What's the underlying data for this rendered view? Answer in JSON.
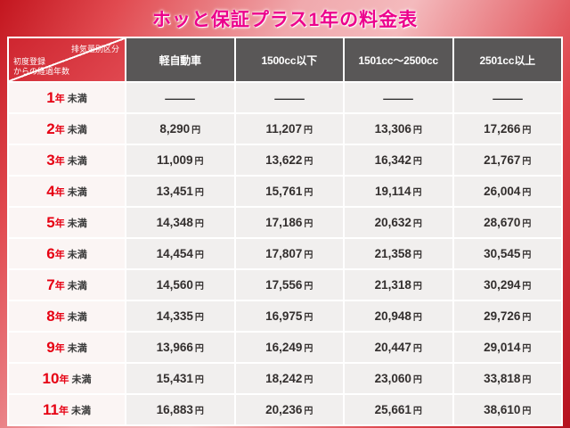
{
  "title": "ホッと保証プラス1年の料金表",
  "corner": {
    "top": "排気量別区分",
    "bottom": "初度登録からの経過年数",
    "bottom_lines": [
      "初度登録",
      "からの経過年数"
    ]
  },
  "chart_data": {
    "type": "table",
    "title": "ホッと保証プラス1年の料金表",
    "col_header": "排気量別区分",
    "row_header": "初度登録からの経過年数",
    "columns": [
      "軽自動車",
      "1500cc以下",
      "1501cc〜2500cc",
      "2501cc以上"
    ],
    "unit": "円",
    "rows": [
      {
        "label": "1年未満",
        "values": [
          "—",
          "—",
          "—",
          "—"
        ]
      },
      {
        "label": "2年未満",
        "values": [
          "8,290円",
          "11,207円",
          "13,306円",
          "17,266円"
        ]
      },
      {
        "label": "3年未満",
        "values": [
          "11,009円",
          "13,622円",
          "16,342円",
          "21,767円"
        ]
      },
      {
        "label": "4年未満",
        "values": [
          "13,451円",
          "15,761円",
          "19,114円",
          "26,004円"
        ]
      },
      {
        "label": "5年未満",
        "values": [
          "14,348円",
          "17,186円",
          "20,632円",
          "28,670円"
        ]
      },
      {
        "label": "6年未満",
        "values": [
          "14,454円",
          "17,807円",
          "21,358円",
          "30,545円"
        ]
      },
      {
        "label": "7年未満",
        "values": [
          "14,560円",
          "17,556円",
          "21,318円",
          "30,294円"
        ]
      },
      {
        "label": "8年未満",
        "values": [
          "14,335円",
          "16,975円",
          "20,948円",
          "29,726円"
        ]
      },
      {
        "label": "9年未満",
        "values": [
          "13,966円",
          "16,249円",
          "20,447円",
          "29,014円"
        ]
      },
      {
        "label": "10年未満",
        "values": [
          "15,431円",
          "18,242円",
          "23,060円",
          "33,818円"
        ]
      },
      {
        "label": "11年未満",
        "values": [
          "16,883円",
          "20,236円",
          "25,661円",
          "38,610円"
        ]
      }
    ]
  },
  "colors": {
    "title": "#ec008c",
    "header_bg": "#595757",
    "corner_bg": "#d2232e",
    "accent_red": "#e60012",
    "background_red": "#c3161f"
  }
}
